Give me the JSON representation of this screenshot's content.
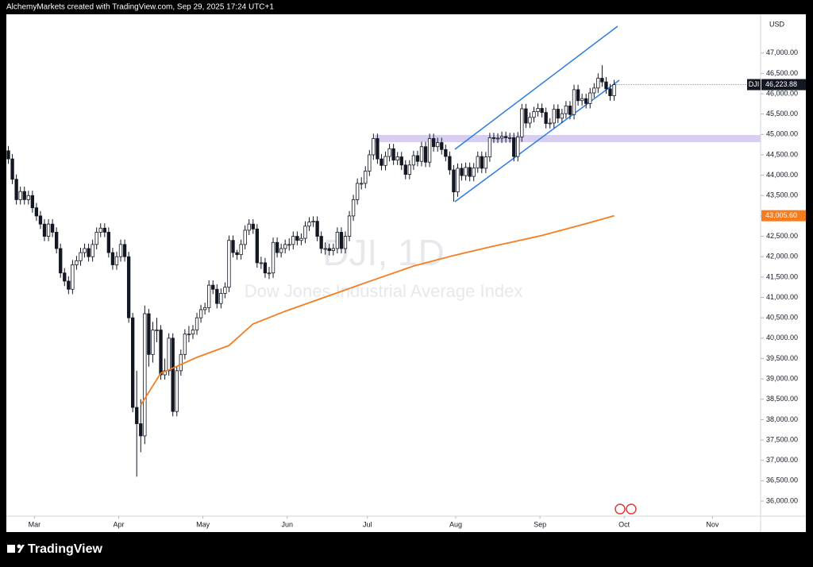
{
  "header": "AlchemyMarkets created with TradingView.com, Sep 29, 2025 17:24 UTC+1",
  "footer": "TradingView",
  "chart_data": {
    "type": "candlestick",
    "title": "DJI, 1D",
    "subtitle": "Dow Jones Industrial Average Index",
    "currency": "USD",
    "up_color": "#ffffff",
    "down_color": "#131722",
    "ylim": [
      35630,
      47950
    ],
    "yticks": [
      {
        "value": 36000,
        "label": "36,000.00"
      },
      {
        "value": 36500,
        "label": "36,500.00"
      },
      {
        "value": 37000,
        "label": "37,000.00"
      },
      {
        "value": 37500,
        "label": "37,500.00"
      },
      {
        "value": 38000,
        "label": "38,000.00"
      },
      {
        "value": 38500,
        "label": "38,500.00"
      },
      {
        "value": 39000,
        "label": "39,000.00"
      },
      {
        "value": 39500,
        "label": "39,500.00"
      },
      {
        "value": 40000,
        "label": "40,000.00"
      },
      {
        "value": 40500,
        "label": "40,500.00"
      },
      {
        "value": 41000,
        "label": "41,000.00"
      },
      {
        "value": 41500,
        "label": "41,500.00"
      },
      {
        "value": 42000,
        "label": "42,000.00"
      },
      {
        "value": 42500,
        "label": "42,500.00"
      },
      {
        "value": 43000,
        "label": "43,000.00"
      },
      {
        "value": 43500,
        "label": "43,500.00"
      },
      {
        "value": 44000,
        "label": "44,000.00"
      },
      {
        "value": 44500,
        "label": "44,500.00"
      },
      {
        "value": 45000,
        "label": "45,000.00"
      },
      {
        "value": 45500,
        "label": "45,500.00"
      },
      {
        "value": 46000,
        "label": "46,000.00"
      },
      {
        "value": 46500,
        "label": "46,500.00"
      },
      {
        "value": 47000,
        "label": "47,000.00"
      }
    ],
    "xlim": [
      -0.5,
      187.5
    ],
    "xticks": [
      {
        "value": 6.5,
        "label": "Mar"
      },
      {
        "value": 27.5,
        "label": "Apr"
      },
      {
        "value": 48.5,
        "label": "May"
      },
      {
        "value": 69.5,
        "label": "Jun"
      },
      {
        "value": 89.5,
        "label": "Jul"
      },
      {
        "value": 111.5,
        "label": "Aug"
      },
      {
        "value": 132.5,
        "label": "Sep"
      },
      {
        "value": 153.5,
        "label": "Oct"
      },
      {
        "value": 175.5,
        "label": "Nov"
      }
    ],
    "candles": [
      [
        44600,
        44720,
        44280,
        44400
      ],
      [
        44400,
        44520,
        43780,
        43900
      ],
      [
        43900,
        44020,
        43280,
        43400
      ],
      [
        43400,
        43720,
        43280,
        43600
      ],
      [
        43600,
        43720,
        43280,
        43400
      ],
      [
        43400,
        43620,
        43280,
        43500
      ],
      [
        43500,
        43620,
        43080,
        43200
      ],
      [
        43200,
        43320,
        42880,
        43000
      ],
      [
        43000,
        43120,
        42680,
        42800
      ],
      [
        42800,
        42920,
        42380,
        42500
      ],
      [
        42500,
        42920,
        42380,
        42800
      ],
      [
        42800,
        42920,
        42480,
        42600
      ],
      [
        42600,
        42720,
        42080,
        42200
      ],
      [
        42200,
        42320,
        41480,
        41600
      ],
      [
        41600,
        41720,
        41280,
        41400
      ],
      [
        41400,
        41520,
        41080,
        41200
      ],
      [
        41200,
        41920,
        41080,
        41800
      ],
      [
        41800,
        42020,
        41680,
        41900
      ],
      [
        41900,
        42220,
        41780,
        42100
      ],
      [
        42100,
        42320,
        41980,
        42200
      ],
      [
        42200,
        42320,
        41880,
        42000
      ],
      [
        42000,
        42420,
        41880,
        42300
      ],
      [
        42300,
        42720,
        42180,
        42600
      ],
      [
        42600,
        42820,
        42480,
        42700
      ],
      [
        42700,
        42820,
        42480,
        42600
      ],
      [
        42600,
        42720,
        41980,
        42100
      ],
      [
        42100,
        42220,
        41680,
        41800
      ],
      [
        41800,
        42120,
        41680,
        42000
      ],
      [
        42000,
        42420,
        41880,
        42300
      ],
      [
        42300,
        42420,
        41880,
        42000
      ],
      [
        42000,
        42120,
        40380,
        40500
      ],
      [
        40500,
        40620,
        38180,
        38300
      ],
      [
        38300,
        39200,
        36600,
        37900
      ],
      [
        37900,
        38500,
        37200,
        37600
      ],
      [
        37600,
        40800,
        37400,
        40600
      ],
      [
        40600,
        40720,
        39300,
        39600
      ],
      [
        39600,
        40400,
        39400,
        40200
      ],
      [
        40200,
        40500,
        39900,
        40200
      ],
      [
        40200,
        40320,
        38980,
        39100
      ],
      [
        39100,
        39500,
        38980,
        39200
      ],
      [
        39200,
        40120,
        39080,
        40000
      ],
      [
        40000,
        40120,
        38080,
        38200
      ],
      [
        38200,
        39320,
        38080,
        39200
      ],
      [
        39200,
        39720,
        39080,
        39600
      ],
      [
        39600,
        40220,
        39480,
        40100
      ],
      [
        40100,
        40300,
        39900,
        40100
      ],
      [
        40100,
        40320,
        39980,
        40200
      ],
      [
        40200,
        40620,
        40080,
        40500
      ],
      [
        40500,
        40820,
        40380,
        40700
      ],
      [
        40700,
        40870,
        40580,
        40750
      ],
      [
        40750,
        41420,
        40630,
        41300
      ],
      [
        41300,
        41420,
        41080,
        41200
      ],
      [
        41200,
        41320,
        40730,
        40850
      ],
      [
        40850,
        41220,
        40730,
        41100
      ],
      [
        41100,
        41370,
        40980,
        41250
      ],
      [
        41250,
        42520,
        41130,
        42400
      ],
      [
        42400,
        42520,
        41980,
        42100
      ],
      [
        42100,
        42170,
        41930,
        42050
      ],
      [
        42050,
        42420,
        41930,
        42300
      ],
      [
        42300,
        42770,
        42180,
        42650
      ],
      [
        42650,
        42920,
        42530,
        42800
      ],
      [
        42800,
        42920,
        42560,
        42680
      ],
      [
        42680,
        42800,
        41730,
        41850
      ],
      [
        41850,
        42000,
        41700,
        41850
      ],
      [
        41850,
        41970,
        41480,
        41600
      ],
      [
        41600,
        41750,
        41450,
        41600
      ],
      [
        41600,
        42470,
        41480,
        42350
      ],
      [
        42350,
        42470,
        41980,
        42100
      ],
      [
        42100,
        42320,
        41980,
        42200
      ],
      [
        42200,
        42420,
        42080,
        42300
      ],
      [
        42300,
        42450,
        42150,
        42300
      ],
      [
        42300,
        42620,
        42180,
        42500
      ],
      [
        42500,
        42620,
        42280,
        42400
      ],
      [
        42400,
        42570,
        42280,
        42450
      ],
      [
        42450,
        42870,
        42330,
        42750
      ],
      [
        42750,
        42970,
        42630,
        42850
      ],
      [
        42850,
        42990,
        42730,
        42870
      ],
      [
        42870,
        42990,
        42380,
        42500
      ],
      [
        42500,
        42620,
        42080,
        42200
      ],
      [
        42200,
        42350,
        42050,
        42200
      ],
      [
        42200,
        42320,
        42030,
        42150
      ],
      [
        42150,
        42320,
        42030,
        42200
      ],
      [
        42200,
        42720,
        42080,
        42600
      ],
      [
        42600,
        42720,
        42080,
        42200
      ],
      [
        42200,
        42620,
        42080,
        42500
      ],
      [
        42500,
        43120,
        42380,
        43000
      ],
      [
        43000,
        43520,
        42880,
        43400
      ],
      [
        43400,
        43920,
        43280,
        43800
      ],
      [
        43800,
        43950,
        43650,
        43800
      ],
      [
        43800,
        44220,
        43680,
        44100
      ],
      [
        44100,
        44620,
        43980,
        44500
      ],
      [
        44500,
        45020,
        44380,
        44900
      ],
      [
        44900,
        45020,
        44280,
        44400
      ],
      [
        44400,
        44520,
        44120,
        44240
      ],
      [
        44240,
        44580,
        44120,
        44460
      ],
      [
        44460,
        44770,
        44340,
        44650
      ],
      [
        44650,
        44770,
        44250,
        44370
      ],
      [
        44370,
        44570,
        44250,
        44450
      ],
      [
        44450,
        44570,
        44130,
        44250
      ],
      [
        44250,
        44370,
        43900,
        44020
      ],
      [
        44020,
        44370,
        43900,
        44250
      ],
      [
        44250,
        44600,
        44130,
        44480
      ],
      [
        44480,
        44600,
        44220,
        44340
      ],
      [
        44340,
        44820,
        44220,
        44700
      ],
      [
        44700,
        44820,
        44200,
        44320
      ],
      [
        44320,
        45020,
        44200,
        44900
      ],
      [
        44900,
        45020,
        44580,
        44700
      ],
      [
        44700,
        44920,
        44580,
        44800
      ],
      [
        44800,
        44920,
        44510,
        44630
      ],
      [
        44630,
        44750,
        44340,
        44460
      ],
      [
        44460,
        44580,
        44010,
        44130
      ],
      [
        44130,
        44250,
        43350,
        43590
      ],
      [
        43590,
        44290,
        43470,
        44170
      ],
      [
        44170,
        44290,
        43870,
        43990
      ],
      [
        43990,
        44310,
        43870,
        44190
      ],
      [
        44190,
        44310,
        43850,
        43970
      ],
      [
        43970,
        44300,
        43850,
        44180
      ],
      [
        44180,
        44580,
        44060,
        44460
      ],
      [
        44460,
        44580,
        44050,
        44170
      ],
      [
        44170,
        44570,
        44050,
        44450
      ],
      [
        44450,
        45040,
        44330,
        44920
      ],
      [
        44920,
        45040,
        44790,
        44910
      ],
      [
        44910,
        45030,
        44790,
        44910
      ],
      [
        44910,
        45070,
        44790,
        44950
      ],
      [
        44950,
        45070,
        44800,
        44920
      ],
      [
        44920,
        45040,
        44800,
        44920
      ],
      [
        44920,
        45040,
        44340,
        44460
      ],
      [
        44460,
        45060,
        44340,
        44940
      ],
      [
        44940,
        45750,
        44820,
        45630
      ],
      [
        45630,
        45750,
        45160,
        45280
      ],
      [
        45280,
        45540,
        45160,
        45420
      ],
      [
        45420,
        45680,
        45300,
        45560
      ],
      [
        45560,
        45760,
        45440,
        45640
      ],
      [
        45640,
        45760,
        45420,
        45540
      ],
      [
        45540,
        45660,
        45150,
        45270
      ],
      [
        45270,
        45400,
        45150,
        45280
      ],
      [
        45280,
        45740,
        45160,
        45620
      ],
      [
        45620,
        45740,
        45280,
        45400
      ],
      [
        45400,
        45630,
        45280,
        45510
      ],
      [
        45510,
        45820,
        45390,
        45700
      ],
      [
        45700,
        45820,
        45370,
        45490
      ],
      [
        45490,
        46220,
        45370,
        46100
      ],
      [
        46100,
        46220,
        45710,
        45830
      ],
      [
        45830,
        46000,
        45710,
        45880
      ],
      [
        45880,
        46000,
        45640,
        45760
      ],
      [
        45760,
        46140,
        45640,
        46020
      ],
      [
        46020,
        46260,
        45900,
        46140
      ],
      [
        46140,
        46500,
        46020,
        46380
      ],
      [
        46380,
        46700,
        46170,
        46290
      ],
      [
        46290,
        46410,
        46000,
        46120
      ],
      [
        46120,
        46240,
        45830,
        45950
      ],
      [
        45950,
        46340,
        45830,
        46223.88
      ]
    ],
    "last_price": {
      "symbol": "DJI",
      "value": 46223.88,
      "label": "46,223.88",
      "color": "#131722"
    },
    "ma": {
      "color": "#f57c1f",
      "x": [
        33,
        38,
        40,
        47,
        55,
        61,
        69,
        77,
        89,
        101,
        111,
        121,
        133,
        144,
        151
      ],
      "values": [
        38360,
        39140,
        39220,
        39530,
        39820,
        40350,
        40660,
        40940,
        41360,
        41770,
        42030,
        42260,
        42520,
        42810,
        43005.6
      ],
      "last_label": "43,005.60"
    }
  }
}
